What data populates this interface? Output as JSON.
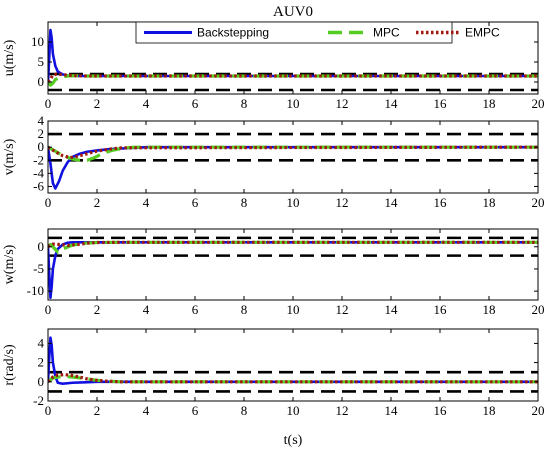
{
  "chart_data": {
    "type": "line",
    "title": "AUV0",
    "xlabel": "t(s)",
    "xlim": [
      0,
      20
    ],
    "xticks": [
      0,
      2,
      4,
      6,
      8,
      10,
      12,
      14,
      16,
      18,
      20
    ],
    "grid": false,
    "legend": {
      "placement": "top-center",
      "orientation": "horizontal",
      "entries": [
        "Backstepping",
        "MPC",
        "EMPC"
      ]
    },
    "series_styles": {
      "Backstepping": {
        "color": "#1010e0",
        "line": "solid"
      },
      "MPC": {
        "color": "#55cc22",
        "line": "dashed"
      },
      "EMPC": {
        "color": "#a01a10",
        "line": "dotted"
      }
    },
    "bound_style": {
      "color": "#000000",
      "line": "dashed"
    },
    "panels": [
      {
        "ylabel": "u(m/s)",
        "ylim": [
          -3,
          15
        ],
        "yticks": [
          0,
          5,
          10
        ],
        "bounds": [
          2,
          -2
        ],
        "series": [
          {
            "name": "Backstepping",
            "x": [
              0,
              0.05,
              0.1,
              0.15,
              0.2,
              0.3,
              0.4,
              0.6,
              0.8,
              1.0,
              1.5,
              2.0,
              3.0,
              20
            ],
            "y": [
              0,
              6,
              13,
              11,
              7,
              4,
              2.6,
              1.9,
              1.6,
              1.5,
              1.5,
              1.5,
              1.5,
              1.5
            ]
          },
          {
            "name": "MPC",
            "x": [
              0,
              0.1,
              0.2,
              0.3,
              0.5,
              0.8,
              1.2,
              1.6,
              2.0,
              3.0,
              20
            ],
            "y": [
              0,
              -0.8,
              -0.3,
              0.6,
              1.2,
              1.5,
              1.6,
              1.5,
              1.5,
              1.5,
              1.5
            ]
          },
          {
            "name": "EMPC",
            "x": [
              0,
              0.1,
              0.2,
              0.35,
              0.5,
              0.8,
              1.0,
              1.5,
              2.0,
              20
            ],
            "y": [
              0,
              0.8,
              1.7,
              2.0,
              1.9,
              1.7,
              1.6,
              1.5,
              1.5,
              1.5
            ]
          }
        ]
      },
      {
        "ylabel": "v(m/s)",
        "ylim": [
          -7,
          4
        ],
        "yticks": [
          -6,
          -4,
          -2,
          0,
          2,
          4
        ],
        "bounds": [
          2,
          -2
        ],
        "series": [
          {
            "name": "Backstepping",
            "x": [
              0,
              0.1,
              0.2,
              0.3,
              0.45,
              0.6,
              0.8,
              1.0,
              1.3,
              1.6,
              2.0,
              2.5,
              3.0,
              4.0,
              20
            ],
            "y": [
              0,
              -2.5,
              -5.5,
              -6.3,
              -5.2,
              -3.6,
              -2.3,
              -1.5,
              -1.0,
              -0.7,
              -0.5,
              -0.3,
              -0.2,
              0,
              0
            ]
          },
          {
            "name": "MPC",
            "x": [
              0,
              0.3,
              0.6,
              1.0,
              1.3,
              1.6,
              1.9,
              2.2,
              2.6,
              3.0,
              3.5,
              20
            ],
            "y": [
              0,
              -0.6,
              -1.3,
              -1.8,
              -2.0,
              -2.0,
              -1.6,
              -1.0,
              -0.5,
              -0.2,
              0,
              0
            ]
          },
          {
            "name": "EMPC",
            "x": [
              0,
              0.3,
              0.6,
              0.9,
              1.2,
              1.6,
              2.0,
              2.5,
              3.0,
              20
            ],
            "y": [
              0,
              -0.7,
              -1.3,
              -1.6,
              -1.4,
              -1.0,
              -0.6,
              -0.3,
              -0.1,
              0
            ]
          }
        ]
      },
      {
        "ylabel": "w(m/s)",
        "ylim": [
          -12,
          4
        ],
        "yticks": [
          -10,
          -5,
          0
        ],
        "bounds": [
          2,
          -2
        ],
        "series": [
          {
            "name": "Backstepping",
            "x": [
              0,
              0.05,
              0.1,
              0.15,
              0.2,
              0.3,
              0.4,
              0.6,
              0.8,
              1.0,
              1.5,
              2.0,
              20
            ],
            "y": [
              0,
              -6,
              -11.5,
              -9,
              -5,
              -2,
              -0.5,
              0.5,
              0.9,
              1.0,
              1.0,
              1.0,
              1.0
            ]
          },
          {
            "name": "MPC",
            "x": [
              0,
              0.1,
              0.2,
              0.4,
              0.6,
              1.0,
              1.5,
              2.0,
              3.0,
              20
            ],
            "y": [
              0,
              0.5,
              0.0,
              -1.2,
              -0.5,
              0.4,
              0.8,
              0.95,
              1.0,
              1.0
            ]
          },
          {
            "name": "EMPC",
            "x": [
              0,
              0.2,
              0.5,
              0.8,
              1.2,
              1.6,
              2.0,
              3.0,
              20
            ],
            "y": [
              0,
              0.6,
              0.5,
              0.3,
              0.5,
              0.8,
              0.95,
              1.0,
              1.0
            ]
          }
        ]
      },
      {
        "ylabel": "r(rad/s)",
        "ylim": [
          -2,
          5.5
        ],
        "yticks": [
          -2,
          0,
          2,
          4
        ],
        "bounds": [
          1,
          -1
        ],
        "series": [
          {
            "name": "Backstepping",
            "x": [
              0,
              0.05,
              0.1,
              0.15,
              0.2,
              0.3,
              0.4,
              0.6,
              0.8,
              1.0,
              1.5,
              2.0,
              3.0,
              20
            ],
            "y": [
              0,
              2.5,
              4.6,
              3.8,
              2.0,
              0.6,
              -0.1,
              -0.2,
              -0.15,
              -0.1,
              -0.05,
              0,
              0,
              0
            ]
          },
          {
            "name": "MPC",
            "x": [
              0,
              0.2,
              0.4,
              0.7,
              1.0,
              1.3,
              1.6,
              2.0,
              2.5,
              3.0,
              20
            ],
            "y": [
              0,
              0.4,
              0.5,
              0.55,
              0.5,
              0.4,
              0.3,
              0.15,
              0.05,
              0,
              0
            ]
          },
          {
            "name": "EMPC",
            "x": [
              0,
              0.2,
              0.4,
              0.7,
              1.0,
              1.3,
              1.6,
              2.0,
              2.5,
              3.0,
              20
            ],
            "y": [
              0,
              0.5,
              0.7,
              0.75,
              0.65,
              0.5,
              0.3,
              0.15,
              0.05,
              0,
              0
            ]
          }
        ]
      }
    ]
  }
}
